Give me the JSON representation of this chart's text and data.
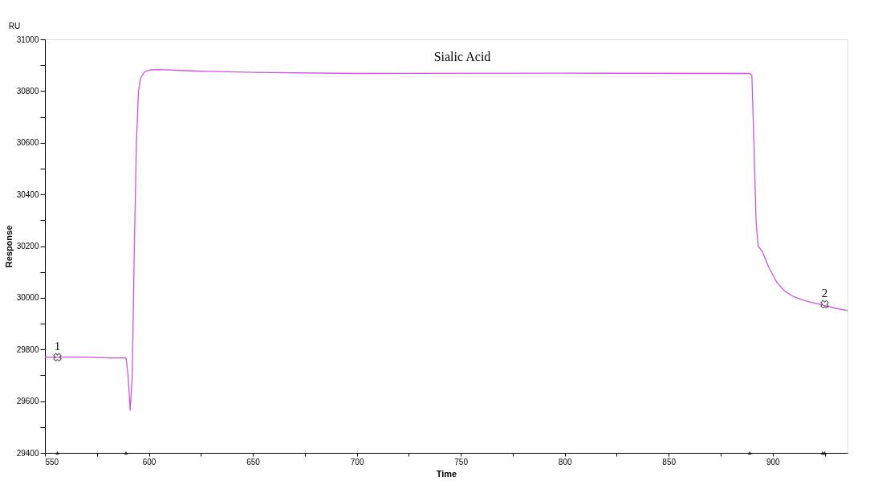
{
  "chart_data": {
    "type": "line",
    "title": "Sialic Acid",
    "xlabel": "Time",
    "ylabel": "Response",
    "annotations": [
      "RU",
      {
        "text": "1",
        "x": 556,
        "y": 29770
      },
      {
        "text": "2",
        "x": 925,
        "y": 29975
      }
    ],
    "xlim": [
      550,
      936
    ],
    "ylim": [
      29400,
      31000
    ],
    "xticks": [
      550,
      {
        "value": 575,
        "label": null
      },
      600,
      {
        "value": 625,
        "label": null
      },
      650,
      {
        "value": 675,
        "label": null
      },
      700,
      {
        "value": 725,
        "label": null
      },
      750,
      {
        "value": 775,
        "label": null
      },
      800,
      {
        "value": 825,
        "label": null
      },
      850,
      {
        "value": 875,
        "label": null
      },
      900,
      {
        "value": 925,
        "label": null
      }
    ],
    "yticks": [
      29400,
      {
        "value": 29500,
        "label": null
      },
      29600,
      {
        "value": 29700,
        "label": null
      },
      29800,
      {
        "value": 29900,
        "label": null
      },
      30000,
      {
        "value": 30100,
        "label": null
      },
      30200,
      {
        "value": 30300,
        "label": null
      },
      30400,
      {
        "value": 30500,
        "label": null
      },
      30600,
      {
        "value": 30700,
        "label": null
      },
      30800,
      {
        "value": 30900,
        "label": null
      },
      31000
    ],
    "grid": false,
    "series": [
      {
        "color": "#cc55dd",
        "marker": "none",
        "x": [
          550,
          570,
          580,
          589,
          590,
          591,
          592,
          593,
          594,
          595,
          596,
          598,
          601,
          605,
          620,
          650,
          700,
          800,
          889,
          890,
          891,
          892,
          893,
          895,
          898,
          902,
          906,
          910,
          915,
          920,
          925,
          930,
          936
        ],
        "values": [
          29770,
          29770,
          29768,
          29767,
          29700,
          29565,
          29700,
          30200,
          30600,
          30800,
          30850,
          30875,
          30882,
          30883,
          30878,
          30872,
          30868,
          30869,
          30868,
          30860,
          30600,
          30300,
          30200,
          30180,
          30120,
          30060,
          30025,
          30005,
          29990,
          29980,
          29970,
          29960,
          29950
        ]
      },
      {
        "type": "scatter",
        "color": "#000000",
        "marker": "cross",
        "x": [
          556,
          925
        ],
        "values": [
          29770,
          29975
        ]
      },
      {
        "type": "scatter",
        "color": "#000000",
        "marker": "triangle",
        "x": [
          556,
          589,
          889,
          924,
          925
        ],
        "values": [
          29400,
          29400,
          29400,
          29400,
          29400
        ]
      }
    ]
  }
}
